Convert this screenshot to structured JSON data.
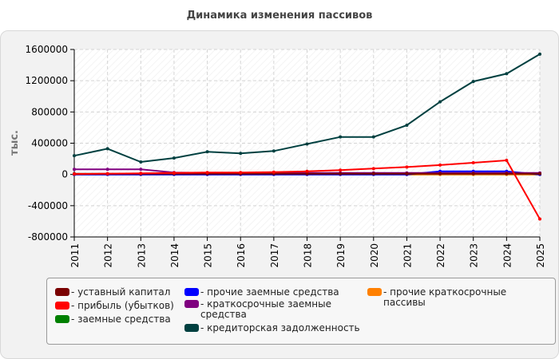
{
  "chart_data": {
    "type": "line",
    "title": "Динамика изменения пассивов",
    "xlabel": "",
    "ylabel": "тыс.",
    "x": [
      "2011",
      "2012",
      "2013",
      "2014",
      "2015",
      "2016",
      "2017",
      "2018",
      "2019",
      "2020",
      "2021",
      "2022",
      "2023",
      "2024",
      "2025"
    ],
    "ylim": [
      -800000,
      1600000
    ],
    "yticks": [
      -800000,
      -400000,
      0,
      400000,
      800000,
      1200000,
      1600000
    ],
    "ytick_labels": [
      "-800000",
      "-400000",
      "0",
      "400000",
      "800000",
      "1200000",
      "1600000"
    ],
    "grid": true,
    "legend_position": "bottom",
    "series": [
      {
        "name": "уставный капитал",
        "color": "#7a0000",
        "values": [
          10000,
          10000,
          10000,
          10000,
          10000,
          10000,
          10000,
          10000,
          10000,
          10000,
          10000,
          10000,
          10000,
          10000,
          10000
        ]
      },
      {
        "name": "прибыль (убытков)",
        "color": "#ff0000",
        "values": [
          5000,
          10000,
          15000,
          20000,
          25000,
          25000,
          30000,
          40000,
          55000,
          75000,
          95000,
          120000,
          150000,
          180000,
          -570000
        ]
      },
      {
        "name": "заемные средства",
        "color": "#008000",
        "values": [
          0,
          0,
          0,
          0,
          0,
          0,
          0,
          0,
          0,
          0,
          0,
          0,
          0,
          0,
          0
        ]
      },
      {
        "name": "прочие заемные средства",
        "color": "#0000ff",
        "values": [
          0,
          0,
          0,
          0,
          0,
          0,
          0,
          0,
          0,
          0,
          0,
          40000,
          40000,
          40000,
          0
        ]
      },
      {
        "name": "краткосрочные заемные средства",
        "color": "#800080",
        "values": [
          65000,
          65000,
          65000,
          25000,
          20000,
          20000,
          20000,
          20000,
          20000,
          20000,
          20000,
          20000,
          20000,
          20000,
          20000
        ]
      },
      {
        "name": "кредиторская задолженность",
        "color": "#004040",
        "values": [
          240000,
          330000,
          160000,
          210000,
          290000,
          270000,
          300000,
          390000,
          480000,
          480000,
          630000,
          930000,
          1190000,
          1290000,
          1540000
        ]
      },
      {
        "name": "прочие краткосрочные пассивы",
        "color": "#ff8000",
        "values": [
          0,
          0,
          0,
          0,
          0,
          0,
          0,
          0,
          0,
          0,
          0,
          0,
          0,
          0,
          0
        ]
      }
    ]
  },
  "legend": {
    "entries": [
      {
        "label": "- уставный капитал",
        "color": "#7a0000"
      },
      {
        "label": "- прибыль (убытков)",
        "color": "#ff0000"
      },
      {
        "label": "- заемные средства",
        "color": "#008000"
      },
      {
        "label": "- прочие заемные средства",
        "color": "#0000ff"
      },
      {
        "label": "- краткосрочные заемные средства",
        "color": "#800080"
      },
      {
        "label": "- кредиторская задолженность",
        "color": "#004040"
      },
      {
        "label": "- прочие краткосрочные пассивы",
        "color": "#ff8000"
      }
    ]
  }
}
